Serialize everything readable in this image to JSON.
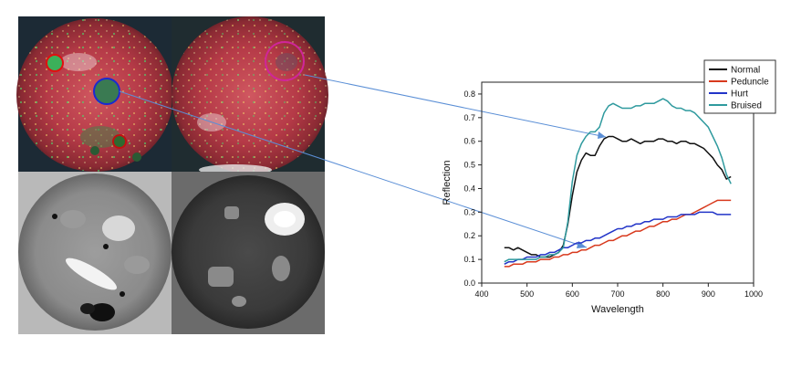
{
  "panels": [
    {
      "name": "apple-rgb-normal-view",
      "kind": "rgb"
    },
    {
      "name": "apple-rgb-bruise-view",
      "kind": "rgb"
    },
    {
      "name": "apple-gray-normal-view",
      "kind": "grayscale"
    },
    {
      "name": "apple-gray-bruise-view",
      "kind": "grayscale"
    }
  ],
  "annotation_colors": {
    "normal-circle": "#e01010",
    "hurt-circle": "#1a2ad0",
    "peduncle-circle": "#c01010",
    "bruised-circle": "#d0259a",
    "pointer-lines": "#5b8fd6"
  },
  "chart_data": {
    "type": "line",
    "title": "",
    "xlabel": "Wavelength",
    "ylabel": "Reflection",
    "xlim": [
      400,
      1000
    ],
    "ylim": [
      0,
      0.85
    ],
    "xticks": [
      "400",
      "500",
      "600",
      "700",
      "800",
      "900",
      "1000"
    ],
    "yticks": [
      "0.0",
      "0.1",
      "0.2",
      "0.3",
      "0.4",
      "0.5",
      "0.6",
      "0.7",
      "0.8"
    ],
    "grid": false,
    "legend_position": "top-right",
    "series": [
      {
        "name": "Normal",
        "color": "#111111",
        "x": [
          450,
          460,
          470,
          480,
          490,
          500,
          510,
          520,
          530,
          540,
          550,
          560,
          570,
          580,
          590,
          600,
          610,
          620,
          630,
          640,
          650,
          660,
          670,
          680,
          690,
          700,
          710,
          720,
          730,
          740,
          750,
          760,
          770,
          780,
          790,
          800,
          810,
          820,
          830,
          840,
          850,
          860,
          870,
          880,
          890,
          900,
          910,
          920,
          930,
          940,
          950
        ],
        "y": [
          0.15,
          0.15,
          0.14,
          0.15,
          0.14,
          0.13,
          0.12,
          0.12,
          0.11,
          0.11,
          0.11,
          0.12,
          0.13,
          0.16,
          0.25,
          0.37,
          0.47,
          0.52,
          0.55,
          0.54,
          0.54,
          0.58,
          0.61,
          0.62,
          0.62,
          0.61,
          0.6,
          0.6,
          0.61,
          0.6,
          0.59,
          0.6,
          0.6,
          0.6,
          0.61,
          0.61,
          0.6,
          0.6,
          0.59,
          0.6,
          0.6,
          0.59,
          0.59,
          0.58,
          0.57,
          0.55,
          0.53,
          0.5,
          0.48,
          0.44,
          0.45
        ]
      },
      {
        "name": "Peduncle",
        "color": "#d83a1e",
        "x": [
          450,
          460,
          470,
          480,
          490,
          500,
          510,
          520,
          530,
          540,
          550,
          560,
          570,
          580,
          590,
          600,
          610,
          620,
          630,
          640,
          650,
          660,
          670,
          680,
          690,
          700,
          710,
          720,
          730,
          740,
          750,
          760,
          770,
          780,
          790,
          800,
          810,
          820,
          830,
          840,
          850,
          860,
          870,
          880,
          890,
          900,
          910,
          920,
          930,
          940,
          950
        ],
        "y": [
          0.07,
          0.07,
          0.08,
          0.08,
          0.08,
          0.09,
          0.09,
          0.09,
          0.1,
          0.1,
          0.1,
          0.11,
          0.11,
          0.12,
          0.12,
          0.13,
          0.13,
          0.14,
          0.14,
          0.15,
          0.16,
          0.16,
          0.17,
          0.18,
          0.18,
          0.19,
          0.2,
          0.2,
          0.21,
          0.22,
          0.22,
          0.23,
          0.24,
          0.24,
          0.25,
          0.26,
          0.26,
          0.27,
          0.27,
          0.28,
          0.29,
          0.29,
          0.3,
          0.31,
          0.32,
          0.33,
          0.34,
          0.35,
          0.35,
          0.35,
          0.35
        ]
      },
      {
        "name": "Hurt",
        "color": "#2234c8",
        "x": [
          450,
          460,
          470,
          480,
          490,
          500,
          510,
          520,
          530,
          540,
          550,
          560,
          570,
          580,
          590,
          600,
          610,
          620,
          630,
          640,
          650,
          660,
          670,
          680,
          690,
          700,
          710,
          720,
          730,
          740,
          750,
          760,
          770,
          780,
          790,
          800,
          810,
          820,
          830,
          840,
          850,
          860,
          870,
          880,
          890,
          900,
          910,
          920,
          930,
          940,
          950
        ],
        "y": [
          0.08,
          0.09,
          0.09,
          0.1,
          0.1,
          0.11,
          0.11,
          0.11,
          0.12,
          0.12,
          0.13,
          0.13,
          0.14,
          0.15,
          0.15,
          0.16,
          0.17,
          0.17,
          0.18,
          0.18,
          0.19,
          0.19,
          0.2,
          0.21,
          0.22,
          0.23,
          0.23,
          0.24,
          0.24,
          0.25,
          0.25,
          0.26,
          0.26,
          0.27,
          0.27,
          0.27,
          0.28,
          0.28,
          0.28,
          0.29,
          0.29,
          0.29,
          0.29,
          0.3,
          0.3,
          0.3,
          0.3,
          0.29,
          0.29,
          0.29,
          0.29
        ]
      },
      {
        "name": "Bruised",
        "color": "#2f9a9e",
        "x": [
          450,
          460,
          470,
          480,
          490,
          500,
          510,
          520,
          530,
          540,
          550,
          560,
          570,
          580,
          590,
          600,
          610,
          620,
          630,
          640,
          650,
          660,
          670,
          680,
          690,
          700,
          710,
          720,
          730,
          740,
          750,
          760,
          770,
          780,
          790,
          800,
          810,
          820,
          830,
          840,
          850,
          860,
          870,
          880,
          890,
          900,
          910,
          920,
          930,
          940,
          950
        ],
        "y": [
          0.09,
          0.1,
          0.1,
          0.1,
          0.1,
          0.1,
          0.1,
          0.1,
          0.11,
          0.11,
          0.12,
          0.12,
          0.13,
          0.15,
          0.26,
          0.43,
          0.54,
          0.59,
          0.62,
          0.64,
          0.64,
          0.66,
          0.72,
          0.75,
          0.76,
          0.75,
          0.74,
          0.74,
          0.74,
          0.75,
          0.75,
          0.76,
          0.76,
          0.76,
          0.77,
          0.78,
          0.77,
          0.75,
          0.74,
          0.74,
          0.73,
          0.73,
          0.72,
          0.7,
          0.68,
          0.66,
          0.62,
          0.58,
          0.53,
          0.46,
          0.42
        ]
      }
    ]
  }
}
